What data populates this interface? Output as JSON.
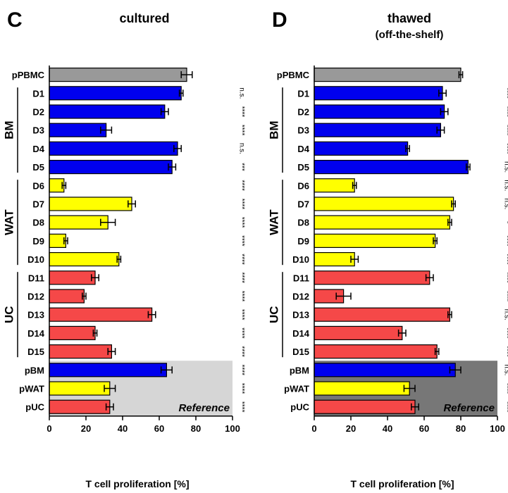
{
  "chart_data": [
    {
      "type": "bar",
      "orientation": "horizontal",
      "panel_letter": "C",
      "title": "cultured",
      "subtitle": "",
      "xlabel": "T cell proliferation [%]",
      "xlim": [
        0,
        100
      ],
      "xticks": [
        "0",
        "20",
        "40",
        "60",
        "80",
        "100"
      ],
      "reference_label": "Reference",
      "reference_shade": "#d6d6d6",
      "groups": [
        {
          "label": "BM",
          "from": 1,
          "to": 5
        },
        {
          "label": "WAT",
          "from": 6,
          "to": 10
        },
        {
          "label": "UC",
          "from": 11,
          "to": 15
        }
      ],
      "categories": [
        "pPBMC",
        "D1",
        "D2",
        "D3",
        "D4",
        "D5",
        "D6",
        "D7",
        "D8",
        "D9",
        "D10",
        "D11",
        "D12",
        "D13",
        "D14",
        "D15",
        "pBM",
        "pWAT",
        "pUC"
      ],
      "values": [
        75,
        72,
        63,
        31,
        70,
        67,
        8,
        45,
        32,
        9,
        38,
        25,
        19,
        56,
        25,
        34,
        64,
        33,
        33
      ],
      "errors": [
        3,
        1,
        2,
        3,
        2,
        2,
        1,
        2,
        4,
        1,
        1,
        2,
        1,
        2,
        1,
        2,
        3,
        3,
        2
      ],
      "colors": [
        "#999999",
        "#0000ee",
        "#0000ee",
        "#0000ee",
        "#0000ee",
        "#0000ee",
        "#ffff00",
        "#ffff00",
        "#ffff00",
        "#ffff00",
        "#ffff00",
        "#f54848",
        "#f54848",
        "#f54848",
        "#f54848",
        "#f54848",
        "#0000ee",
        "#ffff00",
        "#f54848"
      ],
      "significance": [
        "",
        "n.s.",
        "****",
        "****",
        "n.s.",
        "***",
        "****",
        "****",
        "****",
        "****",
        "****",
        "****",
        "****",
        "****",
        "****",
        "****",
        "****",
        "****",
        "****"
      ]
    },
    {
      "type": "bar",
      "orientation": "horizontal",
      "panel_letter": "D",
      "title": "thawed",
      "subtitle": "(off-the-shelf)",
      "xlabel": "T cell proliferation [%]",
      "xlim": [
        0,
        100
      ],
      "xticks": [
        "0",
        "20",
        "40",
        "60",
        "80",
        "100"
      ],
      "reference_label": "Reference",
      "reference_shade": "#777777",
      "groups": [
        {
          "label": "BM",
          "from": 1,
          "to": 5
        },
        {
          "label": "WAT",
          "from": 6,
          "to": 10
        },
        {
          "label": "UC",
          "from": 11,
          "to": 15
        }
      ],
      "categories": [
        "pPBMC",
        "D1",
        "D2",
        "D3",
        "D4",
        "D5",
        "D6",
        "D7",
        "D8",
        "D9",
        "D10",
        "D11",
        "D12",
        "D13",
        "D14",
        "D15",
        "pBM",
        "pWAT",
        "pUC"
      ],
      "values": [
        80,
        70,
        71,
        69,
        51,
        84,
        22,
        76,
        74,
        66,
        22,
        63,
        16,
        74,
        48,
        67,
        77,
        52,
        55
      ],
      "errors": [
        1,
        2,
        2,
        2,
        1,
        1,
        1,
        1,
        1,
        1,
        2,
        2,
        4,
        1,
        2,
        1,
        3,
        3,
        2
      ],
      "colors": [
        "#999999",
        "#0000ee",
        "#0000ee",
        "#0000ee",
        "#0000ee",
        "#0000ee",
        "#ffff00",
        "#ffff00",
        "#ffff00",
        "#ffff00",
        "#ffff00",
        "#f54848",
        "#f54848",
        "#f54848",
        "#f54848",
        "#f54848",
        "#0000ee",
        "#ffff00",
        "#f54848"
      ],
      "significance": [
        "",
        "****",
        "****",
        "****",
        "****",
        "n.s.",
        "n.s.",
        "n.s.",
        "*",
        "****",
        "****",
        "****",
        "****",
        "n.s.",
        "****",
        "****",
        "n.s.",
        "****",
        "****"
      ]
    }
  ]
}
